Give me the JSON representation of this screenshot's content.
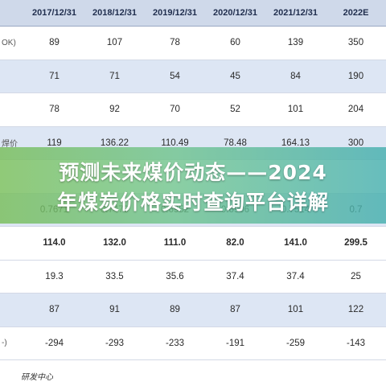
{
  "table": {
    "headers": [
      "",
      "2017/12/31",
      "2018/12/31",
      "2019/12/31",
      "2020/12/31",
      "2021/12/31",
      "2022E"
    ],
    "rows": [
      {
        "label": "OK)",
        "style": "plain",
        "cells": [
          "89",
          "107",
          "78",
          "60",
          "139",
          "350"
        ]
      },
      {
        "label": "",
        "style": "alt",
        "cells": [
          "71",
          "71",
          "54",
          "45",
          "84",
          "190"
        ]
      },
      {
        "label": "",
        "style": "plain",
        "cells": [
          "78",
          "92",
          "70",
          "52",
          "101",
          "204"
        ]
      },
      {
        "label": "焊价",
        "style": "alt",
        "cells": [
          "119",
          "136.22",
          "110.49",
          "78.48",
          "164.13",
          "300"
        ]
      },
      {
        "label": "",
        "style": "plain",
        "cells": [
          "",
          "",
          "",
          "",
          "",
          ""
        ]
      },
      {
        "label": "",
        "style": "alt",
        "cells": [
          "0.7671",
          "0.7479",
          "0.6952",
          "0.6906",
          "0.7514",
          "0.7"
        ]
      },
      {
        "label": "",
        "style": "bold",
        "cells": [
          "114.0",
          "132.0",
          "111.0",
          "82.0",
          "141.0",
          "299.5"
        ]
      },
      {
        "label": "",
        "style": "plain",
        "cells": [
          "19.3",
          "33.5",
          "35.6",
          "37.4",
          "37.4",
          "25"
        ]
      },
      {
        "label": "",
        "style": "alt",
        "cells": [
          "87",
          "91",
          "89",
          "87",
          "101",
          "122"
        ]
      },
      {
        "label": "-)",
        "style": "plain",
        "cells": [
          "-294",
          "-293",
          "-233",
          "-191",
          "-259",
          "-143"
        ]
      }
    ]
  },
  "footer": {
    "text": "研发中心"
  },
  "banner": {
    "line1": "预测未来煤价动态——2024",
    "line2": "年煤炭价格实时查询平台详解"
  }
}
